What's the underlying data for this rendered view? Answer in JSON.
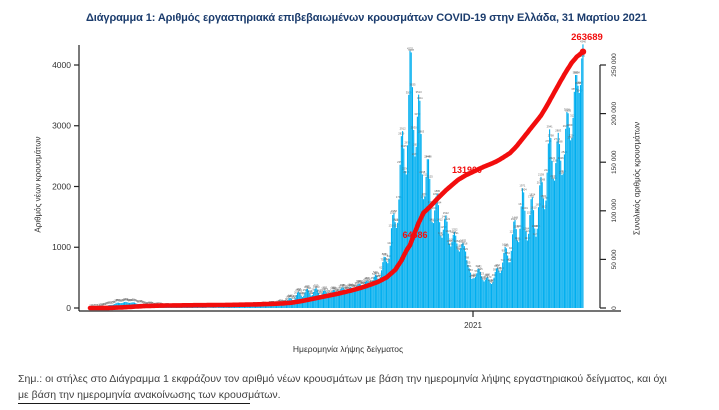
{
  "title": "Διάγραμμα 1: Αριθμός εργαστηριακά επιβεβαιωμένων κρουσμάτων COVID-19 στην Ελλάδα, 31 Μαρτίου 2021",
  "annotations": {
    "wave2_total": "64586",
    "mid_total": "131900",
    "final_total": "263689"
  },
  "footnote": {
    "line1": "Σημ.: οι στήλες στο Διάγραμμα 1 εκφράζουν τον αριθμό νέων κρουσμάτων με βάση την ημερομηνία λήψης εργαστηριακού δείγματος, και όχι",
    "line2": "με βάση την ημερομηνία ανακοίνωσης των κρουσμάτων."
  },
  "chart_data": {
    "type": "bar",
    "title": "Διάγραμμα 1: Αριθμός εργαστηριακά επιβεβαιωμένων κρουσμάτων COVID-19 στην Ελλάδα, 31 Μαρτίου 2021",
    "xlabel": "Ημερομηνία λήψης δείγματος",
    "ylabel_left": "Αριθμός νέων κρουσμάτων",
    "ylabel_right": "Συνολικός αριθμός κρουσμάτων",
    "ylim_left": [
      0,
      4400
    ],
    "ylim_right": [
      0,
      270000
    ],
    "x_range": [
      "2020-02-26",
      "2021-03-31"
    ],
    "x_ticks": [
      {
        "date": "2021-01-01",
        "label": "2021"
      }
    ],
    "y_ticks_left": {
      "values": [
        0,
        1000,
        2000,
        3000,
        4000
      ],
      "labels": [
        "0",
        "1000",
        "2000",
        "3000",
        "4000"
      ]
    },
    "y_ticks_right": {
      "values": [
        0,
        50000,
        100000,
        150000,
        200000,
        250000
      ],
      "labels": [
        "0",
        "50 000",
        "100 000",
        "150 000",
        "200 000",
        "250 000"
      ]
    },
    "grid": false,
    "legend": "none",
    "colors": {
      "bar": "#00aeef",
      "line": "#f20d0d",
      "axis": "#222222",
      "bar_label": "#606060"
    },
    "series": [
      {
        "name": "new_cases",
        "type": "bar",
        "axis": "left"
      },
      {
        "name": "cumulative_cases",
        "type": "line",
        "axis": "right"
      }
    ],
    "points_note": "anchor points [sampling_date, new_cases, cumulative_total]; daily bars interpolate between anchors",
    "points": [
      [
        "2020-02-26",
        1,
        1
      ],
      [
        "2020-03-05",
        10,
        32
      ],
      [
        "2020-03-12",
        40,
        120
      ],
      [
        "2020-03-19",
        80,
        420
      ],
      [
        "2020-03-26",
        95,
        850
      ],
      [
        "2020-04-02",
        85,
        1420
      ],
      [
        "2020-04-09",
        55,
        1950
      ],
      [
        "2020-04-16",
        35,
        2250
      ],
      [
        "2020-04-23",
        25,
        2450
      ],
      [
        "2020-04-30",
        15,
        2590
      ],
      [
        "2020-05-10",
        12,
        2720
      ],
      [
        "2020-05-20",
        10,
        2840
      ],
      [
        "2020-05-31",
        8,
        2940
      ],
      [
        "2020-06-10",
        15,
        3060
      ],
      [
        "2020-06-20",
        20,
        3240
      ],
      [
        "2020-06-30",
        25,
        3420
      ],
      [
        "2020-07-10",
        35,
        3730
      ],
      [
        "2020-07-20",
        45,
        4120
      ],
      [
        "2020-07-31",
        75,
        4690
      ],
      [
        "2020-08-07",
        150,
        5500
      ],
      [
        "2020-08-14",
        230,
        6860
      ],
      [
        "2020-08-21",
        260,
        8580
      ],
      [
        "2020-08-28",
        270,
        10450
      ],
      [
        "2020-09-04",
        240,
        12250
      ],
      [
        "2020-09-11",
        260,
        14000
      ],
      [
        "2020-09-18",
        310,
        16000
      ],
      [
        "2020-09-25",
        320,
        18200
      ],
      [
        "2020-10-02",
        390,
        20700
      ],
      [
        "2020-10-09",
        420,
        23580
      ],
      [
        "2020-10-16",
        510,
        26840
      ],
      [
        "2020-10-23",
        800,
        31400
      ],
      [
        "2020-10-30",
        1450,
        39200
      ],
      [
        "2020-11-04",
        2300,
        48700
      ],
      [
        "2020-11-08",
        2900,
        59000
      ],
      [
        "2020-11-11",
        3440,
        64586
      ],
      [
        "2020-11-14",
        3465,
        75000
      ],
      [
        "2020-11-18",
        2900,
        87500
      ],
      [
        "2020-11-22",
        2350,
        98000
      ],
      [
        "2020-11-27",
        1900,
        104000
      ],
      [
        "2020-12-04",
        1500,
        113500
      ],
      [
        "2020-12-10",
        1300,
        121000
      ],
      [
        "2020-12-15",
        1150,
        126500
      ],
      [
        "2020-12-20",
        1050,
        131900
      ],
      [
        "2020-12-26",
        950,
        136500
      ],
      [
        "2020-12-31",
        450,
        139500
      ],
      [
        "2021-01-05",
        620,
        142500
      ],
      [
        "2021-01-10",
        480,
        145500
      ],
      [
        "2021-01-15",
        430,
        148000
      ],
      [
        "2021-01-20",
        560,
        150800
      ],
      [
        "2021-01-25",
        780,
        154500
      ],
      [
        "2021-01-31",
        950,
        159500
      ],
      [
        "2021-02-05",
        1300,
        166000
      ],
      [
        "2021-02-10",
        1600,
        174000
      ],
      [
        "2021-02-15",
        1450,
        182000
      ],
      [
        "2021-02-20",
        1500,
        190000
      ],
      [
        "2021-02-25",
        1750,
        198000
      ],
      [
        "2021-03-02",
        2300,
        208500
      ],
      [
        "2021-03-07",
        2600,
        220000
      ],
      [
        "2021-03-12",
        2400,
        231500
      ],
      [
        "2021-03-17",
        2750,
        242500
      ],
      [
        "2021-03-22",
        3150,
        252500
      ],
      [
        "2021-03-26",
        3600,
        258500
      ],
      [
        "2021-03-29",
        3950,
        261500
      ],
      [
        "2021-03-31",
        4340,
        263689
      ]
    ]
  }
}
